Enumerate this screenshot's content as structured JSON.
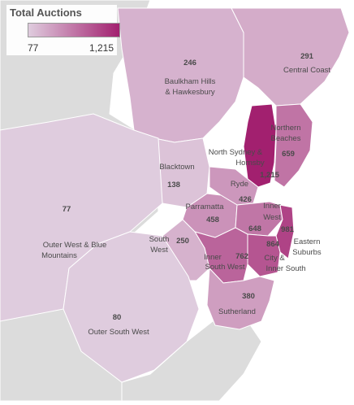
{
  "legend": {
    "title": "Total Auctions",
    "min_label": "77",
    "max_label": "1,215",
    "color_min": "#dfccde",
    "color_max": "#a2206f"
  },
  "colors": {
    "water": "#ffffff",
    "outside_land": "#dcdcdc",
    "outside_border": "#ffffff"
  },
  "regions": [
    {
      "id": "baulkham-hills",
      "name": [
        "Baulkham Hills",
        "& Hawkesbury"
      ],
      "value": "246",
      "auctions": 246
    },
    {
      "id": "central-coast",
      "name": [
        "Central Coast"
      ],
      "value": "291",
      "auctions": 291
    },
    {
      "id": "northern-beaches",
      "name": [
        "Northern",
        "Beaches"
      ],
      "value": "659",
      "auctions": 659
    },
    {
      "id": "north-sydney-hornsby",
      "name": [
        "North Sydney &",
        "Hornsby"
      ],
      "value": "1,215",
      "auctions": 1215
    },
    {
      "id": "blacktown",
      "name": [
        "Blacktown"
      ],
      "value": "138",
      "auctions": 138
    },
    {
      "id": "ryde",
      "name": [
        "Ryde"
      ],
      "value": "426",
      "auctions": 426
    },
    {
      "id": "parramatta",
      "name": [
        "Parramatta"
      ],
      "value": "458",
      "auctions": 458
    },
    {
      "id": "inner-west",
      "name": [
        "Inner",
        "West"
      ],
      "value": "648",
      "auctions": 648
    },
    {
      "id": "eastern-suburbs",
      "name": [
        "Eastern",
        "Suburbs"
      ],
      "value": "981",
      "auctions": 981
    },
    {
      "id": "city-inner-south",
      "name": [
        "City &",
        "Inner South"
      ],
      "value": "864",
      "auctions": 864
    },
    {
      "id": "inner-south-west",
      "name": [
        "Inner",
        "South West"
      ],
      "value": "762",
      "auctions": 762
    },
    {
      "id": "south-west",
      "name": [
        "South",
        "West"
      ],
      "value": "250",
      "auctions": 250
    },
    {
      "id": "sutherland",
      "name": [
        "Sutherland"
      ],
      "value": "380",
      "auctions": 380
    },
    {
      "id": "outer-west-blue-mountains",
      "name": [
        "Outer West & Blue",
        "Mountains"
      ],
      "value": "77",
      "auctions": 77
    },
    {
      "id": "outer-south-west",
      "name": [
        "Outer South West"
      ],
      "value": "80",
      "auctions": 80
    }
  ]
}
